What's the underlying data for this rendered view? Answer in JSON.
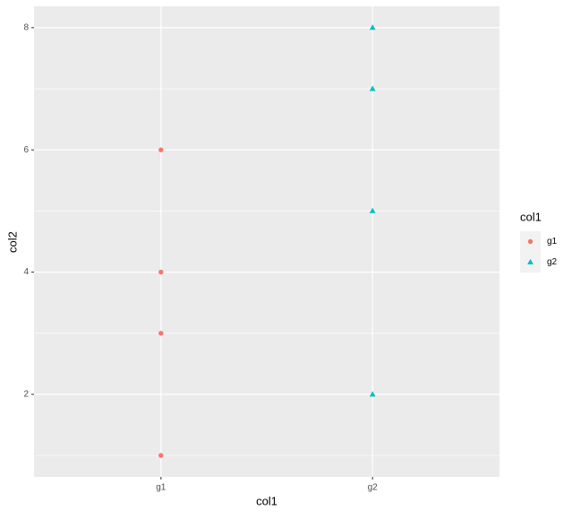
{
  "chart_data": {
    "type": "scatter",
    "categories": [
      "g1",
      "g2"
    ],
    "x_label": "col1",
    "y_label": "col2",
    "legend_title": "col1",
    "series": [
      {
        "name": "g1",
        "color": "#f8766d",
        "shape": "circle",
        "x": [
          "g1",
          "g1",
          "g1",
          "g1"
        ],
        "values": [
          6,
          4,
          3,
          1
        ]
      },
      {
        "name": "g2",
        "color": "#00bfc4",
        "shape": "triangle",
        "x": [
          "g2",
          "g2",
          "g2",
          "g2"
        ],
        "values": [
          8,
          7,
          5,
          2
        ]
      }
    ],
    "ylim": [
      0.65,
      8.35
    ],
    "yticks": [
      2,
      4,
      6,
      8
    ],
    "minor_yticks": [
      1,
      3,
      5,
      7
    ],
    "grid": true,
    "legend": "right"
  }
}
